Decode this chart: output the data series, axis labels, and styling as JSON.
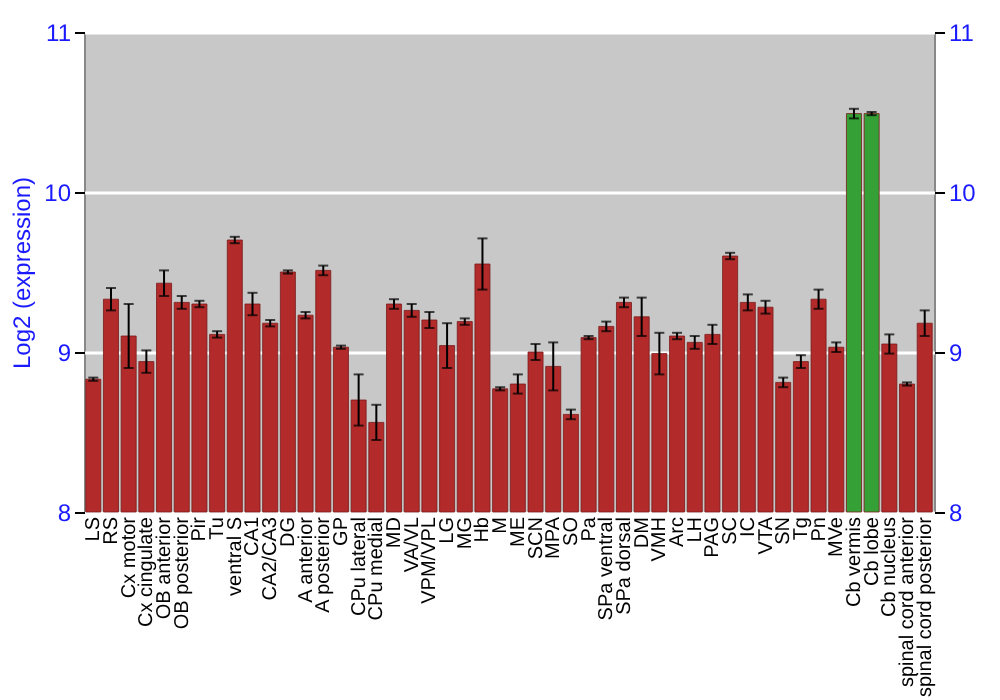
{
  "chart_data": {
    "type": "bar",
    "ylabel": "Log2 (expression)",
    "categories": [
      "LS",
      "RS",
      "Cx motor",
      "Cx cingulate",
      "OB anterior",
      "OB posterior",
      "Pir",
      "Tu",
      "ventral S",
      "CA1",
      "CA2/CA3",
      "DG",
      "A anterior",
      "A posterior",
      "GP",
      "CPu lateral",
      "CPu medial",
      "MD",
      "VA/VL",
      "VPM/VPL",
      "LG",
      "MG",
      "Hb",
      "M",
      "ME",
      "SCN",
      "MPA",
      "SO",
      "Pa",
      "SPa ventral",
      "SPa dorsal",
      "DM",
      "VMH",
      "Arc",
      "LH",
      "PAG",
      "SC",
      "IC",
      "VTA",
      "SN",
      "Tg",
      "Pn",
      "MVe",
      "Cb vermis",
      "Cb lobe",
      "Cb nucleus",
      "spinal cord anterior",
      "spinal cord posterior"
    ],
    "values": [
      8.83,
      9.33,
      9.1,
      8.94,
      9.43,
      9.31,
      9.3,
      9.11,
      9.7,
      9.3,
      9.18,
      9.5,
      9.23,
      9.51,
      9.03,
      8.7,
      8.56,
      9.3,
      9.26,
      9.2,
      9.04,
      9.19,
      9.55,
      8.77,
      8.8,
      9.0,
      8.91,
      8.61,
      9.09,
      9.16,
      9.31,
      9.22,
      8.99,
      9.1,
      9.06,
      9.11,
      9.6,
      9.31,
      9.28,
      8.81,
      8.94,
      9.33,
      9.03,
      10.49,
      10.49,
      9.05,
      8.8,
      9.18
    ],
    "errors": [
      0.01,
      0.07,
      0.2,
      0.07,
      0.08,
      0.04,
      0.02,
      0.02,
      0.02,
      0.07,
      0.02,
      0.01,
      0.02,
      0.03,
      0.01,
      0.16,
      0.11,
      0.03,
      0.04,
      0.05,
      0.14,
      0.02,
      0.16,
      0.01,
      0.06,
      0.05,
      0.15,
      0.03,
      0.01,
      0.03,
      0.03,
      0.12,
      0.13,
      0.02,
      0.04,
      0.06,
      0.02,
      0.05,
      0.04,
      0.03,
      0.04,
      0.06,
      0.03,
      0.03,
      0.01,
      0.06,
      0.01,
      0.08
    ],
    "colors": [
      "#b22a2a",
      "#b22a2a",
      "#b22a2a",
      "#b22a2a",
      "#b22a2a",
      "#b22a2a",
      "#b22a2a",
      "#b22a2a",
      "#b22a2a",
      "#b22a2a",
      "#b22a2a",
      "#b22a2a",
      "#b22a2a",
      "#b22a2a",
      "#b22a2a",
      "#b22a2a",
      "#b22a2a",
      "#b22a2a",
      "#b22a2a",
      "#b22a2a",
      "#b22a2a",
      "#b22a2a",
      "#b22a2a",
      "#b22a2a",
      "#b22a2a",
      "#b22a2a",
      "#b22a2a",
      "#b22a2a",
      "#b22a2a",
      "#b22a2a",
      "#b22a2a",
      "#b22a2a",
      "#b22a2a",
      "#b22a2a",
      "#b22a2a",
      "#b22a2a",
      "#b22a2a",
      "#b22a2a",
      "#b22a2a",
      "#b22a2a",
      "#b22a2a",
      "#b22a2a",
      "#b22a2a",
      "#35a035",
      "#35a035",
      "#b22a2a",
      "#b22a2a",
      "#b22a2a"
    ],
    "ylim": [
      8,
      11
    ],
    "yticks": [
      8,
      9,
      10,
      11
    ],
    "y2lim": [
      8,
      11
    ],
    "y2ticks": [
      8,
      9,
      10,
      11
    ],
    "grid": "y"
  }
}
